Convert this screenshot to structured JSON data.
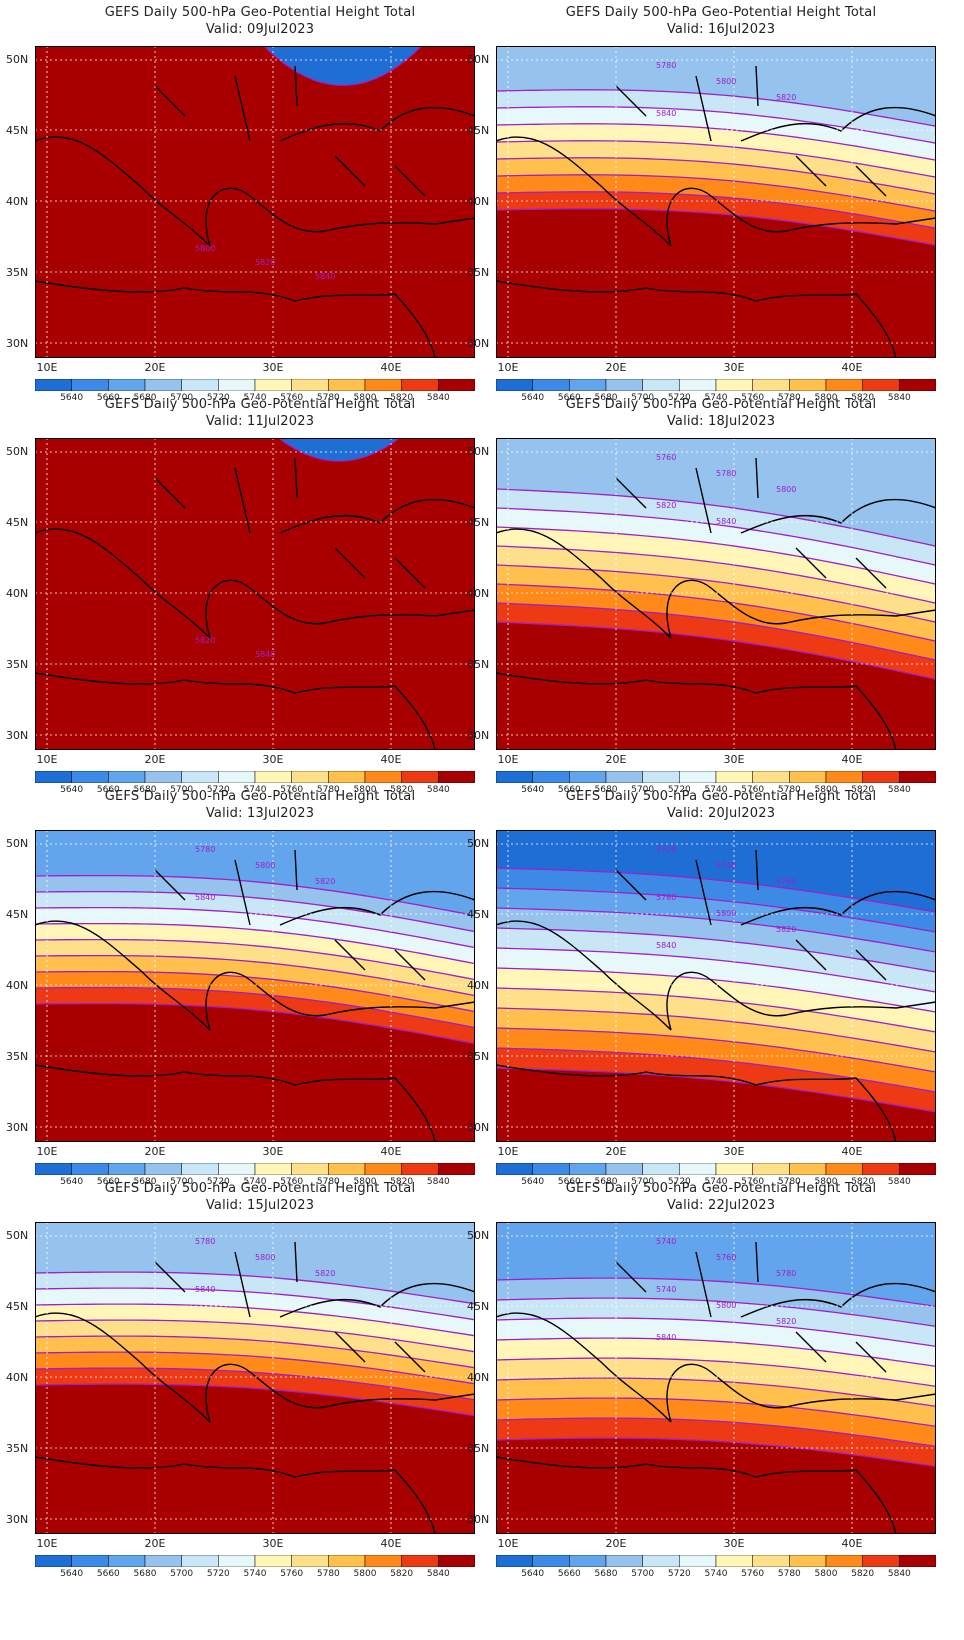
{
  "title_prefix": "GEFS Daily 500-hPa Geo-Potential Height Total",
  "lon_labels": [
    "10E",
    "20E",
    "30E",
    "40E"
  ],
  "lat_labels": [
    "50N",
    "45N",
    "40N",
    "35N",
    "30N"
  ],
  "legend_levels": [
    "5640",
    "5660",
    "5680",
    "5700",
    "5720",
    "5740",
    "5760",
    "5780",
    "5800",
    "5820",
    "5840"
  ],
  "legend_colors": [
    "#1e6ed6",
    "#3d8ae6",
    "#63a5ec",
    "#95c3ee",
    "#c8e6f6",
    "#e7f8fb",
    "#fff6b8",
    "#ffe08a",
    "#ffc04d",
    "#ff8a1a",
    "#ee3a14",
    "#a80000"
  ],
  "panels": [
    {
      "valid": "Valid: 09Jul2023",
      "contour_labels": [
        "5800",
        "5820",
        "5840"
      ]
    },
    {
      "valid": "Valid: 16Jul2023",
      "contour_labels": [
        "5780",
        "5800",
        "5820",
        "5840"
      ]
    },
    {
      "valid": "Valid: 11Jul2023",
      "contour_labels": [
        "5820",
        "5840"
      ]
    },
    {
      "valid": "Valid: 18Jul2023",
      "contour_labels": [
        "5760",
        "5780",
        "5800",
        "5820",
        "5840"
      ]
    },
    {
      "valid": "Valid: 13Jul2023",
      "contour_labels": [
        "5780",
        "5800",
        "5820",
        "5840"
      ]
    },
    {
      "valid": "Valid: 20Jul2023",
      "contour_labels": [
        "5720",
        "5740",
        "5760",
        "5780",
        "5800",
        "5820",
        "5840"
      ]
    },
    {
      "valid": "Valid: 15Jul2023",
      "contour_labels": [
        "5780",
        "5800",
        "5820",
        "5840"
      ]
    },
    {
      "valid": "Valid: 22Jul2023",
      "contour_labels": [
        "5740",
        "5760",
        "5780",
        "5740",
        "5800",
        "5820",
        "5840"
      ]
    }
  ]
}
